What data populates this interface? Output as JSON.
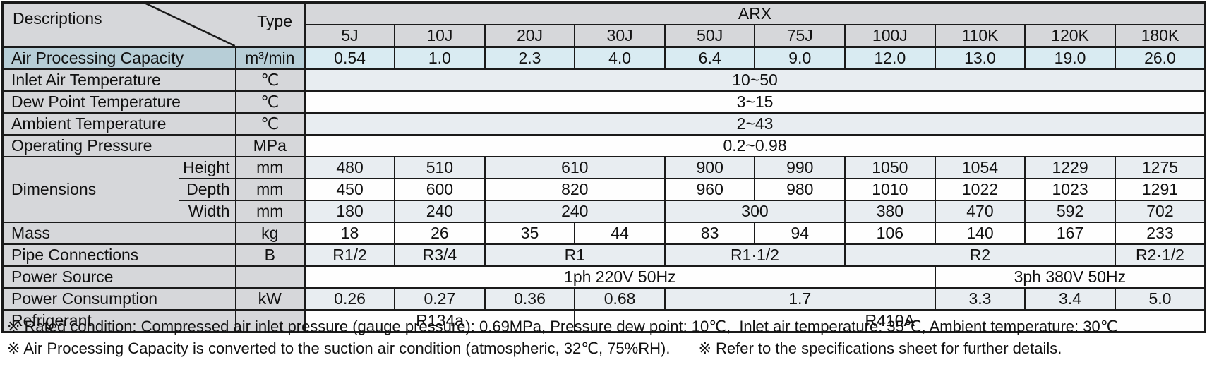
{
  "table": {
    "corner": {
      "descriptions_label": "Descriptions",
      "type_label": "Type"
    },
    "series_header": "ARX",
    "model_columns": [
      "5J",
      "10J",
      "20J",
      "30J",
      "50J",
      "75J",
      "100J",
      "110K",
      "120K",
      "180K"
    ],
    "rows": [
      {
        "id": "air-processing-capacity",
        "label": "Air Processing Capacity",
        "unit": "m³/min",
        "style": "capacity",
        "cells": [
          {
            "v": "0.54"
          },
          {
            "v": "1.0"
          },
          {
            "v": "2.3"
          },
          {
            "v": "4.0"
          },
          {
            "v": "6.4"
          },
          {
            "v": "9.0"
          },
          {
            "v": "12.0"
          },
          {
            "v": "13.0"
          },
          {
            "v": "19.0"
          },
          {
            "v": "26.0"
          }
        ]
      },
      {
        "id": "inlet-air-temperature",
        "label": "Inlet Air Temperature",
        "unit": "℃",
        "style": "tint",
        "cells": [
          {
            "v": "10~50",
            "span": 10
          }
        ]
      },
      {
        "id": "dew-point-temperature",
        "label": "Dew Point Temperature",
        "unit": "℃",
        "style": "white",
        "cells": [
          {
            "v": "3~15",
            "span": 10
          }
        ]
      },
      {
        "id": "ambient-temperature",
        "label": "Ambient Temperature",
        "unit": "℃",
        "style": "tint",
        "cells": [
          {
            "v": "2~43",
            "span": 10
          }
        ]
      },
      {
        "id": "operating-pressure",
        "label": "Operating Pressure",
        "unit": "MPa",
        "style": "white",
        "cells": [
          {
            "v": "0.2~0.98",
            "span": 10
          }
        ]
      },
      {
        "id": "dimensions-height",
        "group": "Dimensions",
        "sublabel": "Height",
        "unit": "mm",
        "style": "tint",
        "cells": [
          {
            "v": "480"
          },
          {
            "v": "510"
          },
          {
            "v": "610",
            "span": 2
          },
          {
            "v": "900"
          },
          {
            "v": "990"
          },
          {
            "v": "1050"
          },
          {
            "v": "1054"
          },
          {
            "v": "1229"
          },
          {
            "v": "1275"
          }
        ]
      },
      {
        "id": "dimensions-depth",
        "sublabel": "Depth",
        "unit": "mm",
        "style": "white",
        "cells": [
          {
            "v": "450"
          },
          {
            "v": "600"
          },
          {
            "v": "820",
            "span": 2
          },
          {
            "v": "960"
          },
          {
            "v": "980"
          },
          {
            "v": "1010"
          },
          {
            "v": "1022"
          },
          {
            "v": "1023"
          },
          {
            "v": "1291"
          }
        ]
      },
      {
        "id": "dimensions-width",
        "sublabel": "Width",
        "unit": "mm",
        "style": "tint",
        "cells": [
          {
            "v": "180"
          },
          {
            "v": "240"
          },
          {
            "v": "240",
            "span": 2
          },
          {
            "v": "300",
            "span": 2
          },
          {
            "v": "380"
          },
          {
            "v": "470"
          },
          {
            "v": "592"
          },
          {
            "v": "702"
          }
        ]
      },
      {
        "id": "mass",
        "label": "Mass",
        "unit": "kg",
        "style": "white",
        "cells": [
          {
            "v": "18"
          },
          {
            "v": "26"
          },
          {
            "v": "35"
          },
          {
            "v": "44"
          },
          {
            "v": "83"
          },
          {
            "v": "94"
          },
          {
            "v": "106"
          },
          {
            "v": "140"
          },
          {
            "v": "167"
          },
          {
            "v": "233"
          }
        ]
      },
      {
        "id": "pipe-connections",
        "label": "Pipe Connections",
        "unit": "B",
        "style": "tint",
        "cells": [
          {
            "v": "R1/2"
          },
          {
            "v": "R3/4"
          },
          {
            "v": "R1",
            "span": 2
          },
          {
            "v": "R1·1/2",
            "span": 2
          },
          {
            "v": "R2",
            "span": 3
          },
          {
            "v": "R2·1/2"
          }
        ]
      },
      {
        "id": "power-source",
        "label": "Power Source",
        "unit": "",
        "style": "white",
        "cells": [
          {
            "v": "1ph 220V 50Hz",
            "span": 7
          },
          {
            "v": "3ph 380V 50Hz",
            "span": 3
          }
        ]
      },
      {
        "id": "power-consumption",
        "label": "Power Consumption",
        "unit": "kW",
        "style": "tint",
        "cells": [
          {
            "v": "0.26"
          },
          {
            "v": "0.27"
          },
          {
            "v": "0.36"
          },
          {
            "v": "0.68"
          },
          {
            "v": "1.7",
            "span": 3
          },
          {
            "v": "3.3"
          },
          {
            "v": "3.4"
          },
          {
            "v": "5.0"
          }
        ]
      },
      {
        "id": "refrigerant",
        "label": "Refrigerant",
        "unit": "",
        "style": "white",
        "cells": [
          {
            "v": "R134a",
            "span": 3
          },
          {
            "v": "R410A",
            "span": 7
          }
        ]
      }
    ]
  },
  "footnotes": {
    "line1": "※ Rated condition: Compressed air inlet pressure (gauge pressure): 0.69MPa, Pressure dew point: 10℃,  Inlet air temperature: 35℃, Ambient temperature: 30℃",
    "line2a": "※ Air Processing Capacity is converted to the suction air condition (atmospheric, 32℃, 75%RH).",
    "line2b": "※ Refer to the specifications sheet for further details."
  },
  "colors": {
    "header_gray": "#d6d7da",
    "capacity_label_blue": "#b7ced7",
    "capacity_value_blue": "#d9ebf2",
    "tint_row": "#e8edf1",
    "border_black": "#1a1a1a"
  }
}
